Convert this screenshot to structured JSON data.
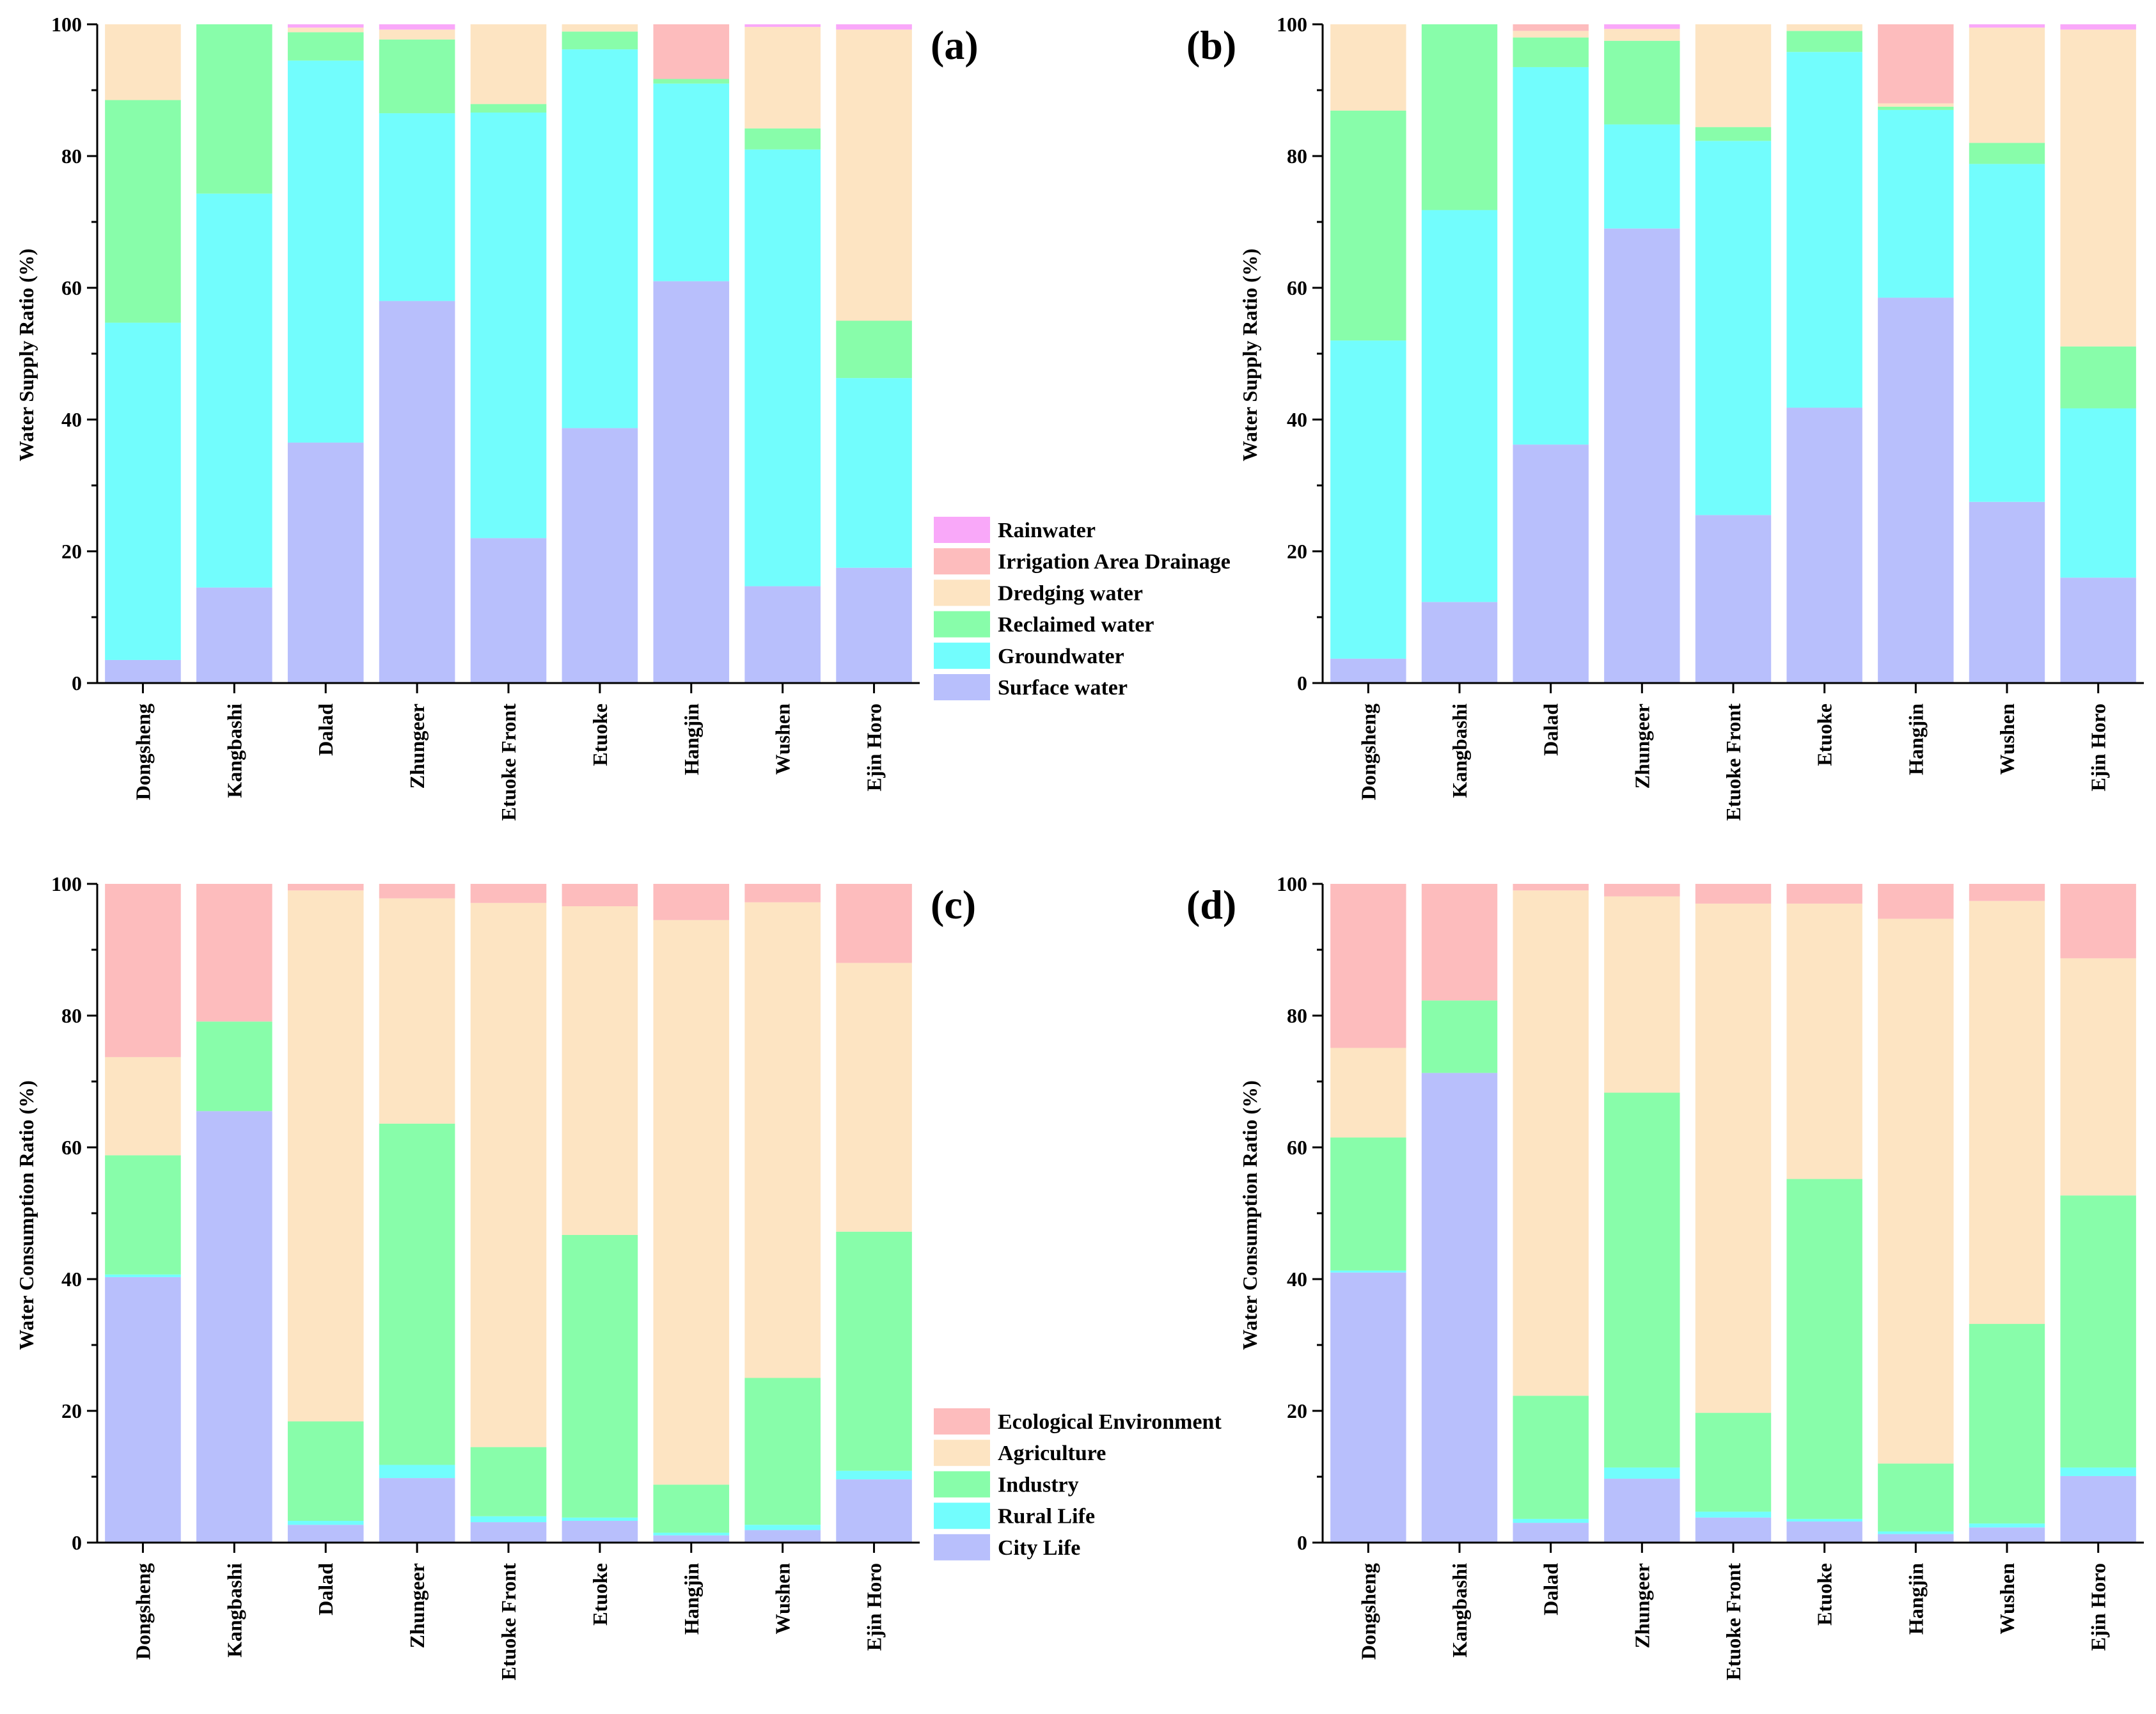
{
  "colors": {
    "Rainwater": "#f9a8f9",
    "Irrigation Area Drainage": "#fdbcbd",
    "Dredging water": "#fde4c2",
    "Reclaimed water": "#88fdaa",
    "Groundwater": "#72fdfd",
    "Surface water": "#b8bffc",
    "Ecological Environment": "#fdbcbd",
    "Agriculture": "#fde4c2",
    "Industry": "#88fdaa",
    "Rural Life": "#72fdfd",
    "City Life": "#b8bffc"
  },
  "chart_data": [
    {
      "type": "bar",
      "stacked": true,
      "panel_label": "(a)",
      "title": "",
      "xlabel": "",
      "ylabel": "Water Supply Ratio (%)",
      "ylim": [
        0,
        100
      ],
      "yticks": [
        "0",
        "20",
        "40",
        "60",
        "80",
        "100"
      ],
      "categories": [
        "Dongsheng",
        "Kangbashi",
        "Dalad",
        "Zhungeer",
        "Etuoke Front",
        "Etuoke",
        "Hangjin",
        "Wushen",
        "Ejin Horo"
      ],
      "series": [
        {
          "name": "Surface water",
          "values": [
            3.5,
            14.5,
            36.5,
            58,
            22,
            38.7,
            61,
            14.7,
            17.5
          ]
        },
        {
          "name": "Groundwater",
          "values": [
            51.2,
            59.8,
            58,
            28.5,
            64.6,
            57.5,
            30,
            66.3,
            28.8
          ]
        },
        {
          "name": "Reclaimed water",
          "values": [
            33.8,
            25.7,
            4.3,
            11.2,
            1.3,
            2.7,
            0.7,
            3.2,
            8.7
          ]
        },
        {
          "name": "Dredging water",
          "values": [
            11.5,
            0,
            0.7,
            1.5,
            12.1,
            1.1,
            0,
            15.4,
            44.2
          ]
        },
        {
          "name": "Irrigation Area Drainage",
          "values": [
            0,
            0,
            0,
            0,
            0,
            0,
            8.3,
            0,
            0
          ]
        },
        {
          "name": "Rainwater",
          "values": [
            0,
            0,
            0.5,
            0.8,
            0,
            0,
            0,
            0.4,
            0.8
          ]
        }
      ],
      "legend": [
        "Rainwater",
        "Irrigation Area Drainage",
        "Dredging water",
        "Reclaimed water",
        "Groundwater",
        "Surface water"
      ],
      "legend_position": "right"
    },
    {
      "type": "bar",
      "stacked": true,
      "panel_label": "(b)",
      "title": "",
      "xlabel": "",
      "ylabel": "Water Supply Ratio (%)",
      "ylim": [
        0,
        100
      ],
      "yticks": [
        "0",
        "20",
        "40",
        "60",
        "80",
        "100"
      ],
      "categories": [
        "Dongsheng",
        "Kangbashi",
        "Dalad",
        "Zhungeer",
        "Etuoke Front",
        "Etuoke",
        "Hangjin",
        "Wushen",
        "Ejin Horo"
      ],
      "series": [
        {
          "name": "Surface water",
          "values": [
            3.7,
            12.3,
            36.2,
            69,
            25.5,
            41.8,
            58.5,
            27.5,
            16
          ]
        },
        {
          "name": "Groundwater",
          "values": [
            48.3,
            59.5,
            57.3,
            15.8,
            56.8,
            54,
            28.5,
            51.3,
            25.7
          ]
        },
        {
          "name": "Reclaimed water",
          "values": [
            34.9,
            28.2,
            4.5,
            12.7,
            2.1,
            3.2,
            0.5,
            3.2,
            9.4
          ]
        },
        {
          "name": "Dredging water",
          "values": [
            13.1,
            0,
            1,
            1.8,
            15.6,
            1,
            0.5,
            17.5,
            48.1
          ]
        },
        {
          "name": "Irrigation Area Drainage",
          "values": [
            0,
            0,
            1,
            0,
            0,
            0,
            12,
            0,
            0
          ]
        },
        {
          "name": "Rainwater",
          "values": [
            0,
            0,
            0,
            0.7,
            0,
            0,
            0,
            0.5,
            0.8
          ]
        }
      ],
      "legend_position": "none"
    },
    {
      "type": "bar",
      "stacked": true,
      "panel_label": "(c)",
      "title": "",
      "xlabel": "",
      "ylabel": "Water Consumption Ratio (%)",
      "ylim": [
        0,
        100
      ],
      "yticks": [
        "0",
        "20",
        "40",
        "60",
        "80",
        "100"
      ],
      "categories": [
        "Dongsheng",
        "Kangbashi",
        "Dalad",
        "Zhungeer",
        "Etuoke Front",
        "Etuoke",
        "Hangjin",
        "Wushen",
        "Ejin Horo"
      ],
      "series": [
        {
          "name": "City Life",
          "values": [
            40.3,
            65.5,
            2.7,
            9.8,
            3.1,
            3.3,
            1.1,
            1.9,
            9.6
          ]
        },
        {
          "name": "Rural Life",
          "values": [
            0.4,
            0,
            0.6,
            2,
            0.9,
            0.5,
            0.4,
            0.8,
            1.3
          ]
        },
        {
          "name": "Industry",
          "values": [
            18.1,
            13.6,
            15.1,
            51.8,
            10.5,
            42.9,
            7.3,
            22.3,
            36.3
          ]
        },
        {
          "name": "Agriculture",
          "values": [
            14.9,
            0,
            80.6,
            34.2,
            82.6,
            49.9,
            85.7,
            72.2,
            40.8
          ]
        },
        {
          "name": "Ecological Environment",
          "values": [
            26.3,
            20.9,
            1,
            2.2,
            2.9,
            3.4,
            5.5,
            2.8,
            12
          ]
        }
      ],
      "legend": [
        "Ecological Environment",
        "Agriculture",
        "Industry",
        "Rural Life",
        "City Life"
      ],
      "legend_position": "right"
    },
    {
      "type": "bar",
      "stacked": true,
      "panel_label": "(d)",
      "title": "",
      "xlabel": "",
      "ylabel": "Water Consumption Ratio (%)",
      "ylim": [
        0,
        100
      ],
      "yticks": [
        "0",
        "20",
        "40",
        "60",
        "80",
        "100"
      ],
      "categories": [
        "Dongsheng",
        "Kangbashi",
        "Dalad",
        "Zhungeer",
        "Etuoke Front",
        "Etuoke",
        "Hangjin",
        "Wushen",
        "Ejin Horo"
      ],
      "series": [
        {
          "name": "City Life",
          "values": [
            41,
            71.3,
            3,
            9.7,
            3.8,
            3.2,
            1.3,
            2.3,
            10.1
          ]
        },
        {
          "name": "Rural Life",
          "values": [
            0.3,
            0,
            0.6,
            1.7,
            0.9,
            0.4,
            0.4,
            0.6,
            1.3
          ]
        },
        {
          "name": "Industry",
          "values": [
            20.2,
            11,
            18.7,
            56.9,
            15,
            51.6,
            10.3,
            30.3,
            41.3
          ]
        },
        {
          "name": "Agriculture",
          "values": [
            13.6,
            0,
            76.7,
            29.8,
            77.3,
            41.8,
            82.7,
            64.2,
            36
          ]
        },
        {
          "name": "Ecological Environment",
          "values": [
            24.9,
            17.7,
            1,
            1.9,
            3,
            3,
            5.3,
            2.6,
            11.3
          ]
        }
      ],
      "legend_position": "none"
    }
  ]
}
